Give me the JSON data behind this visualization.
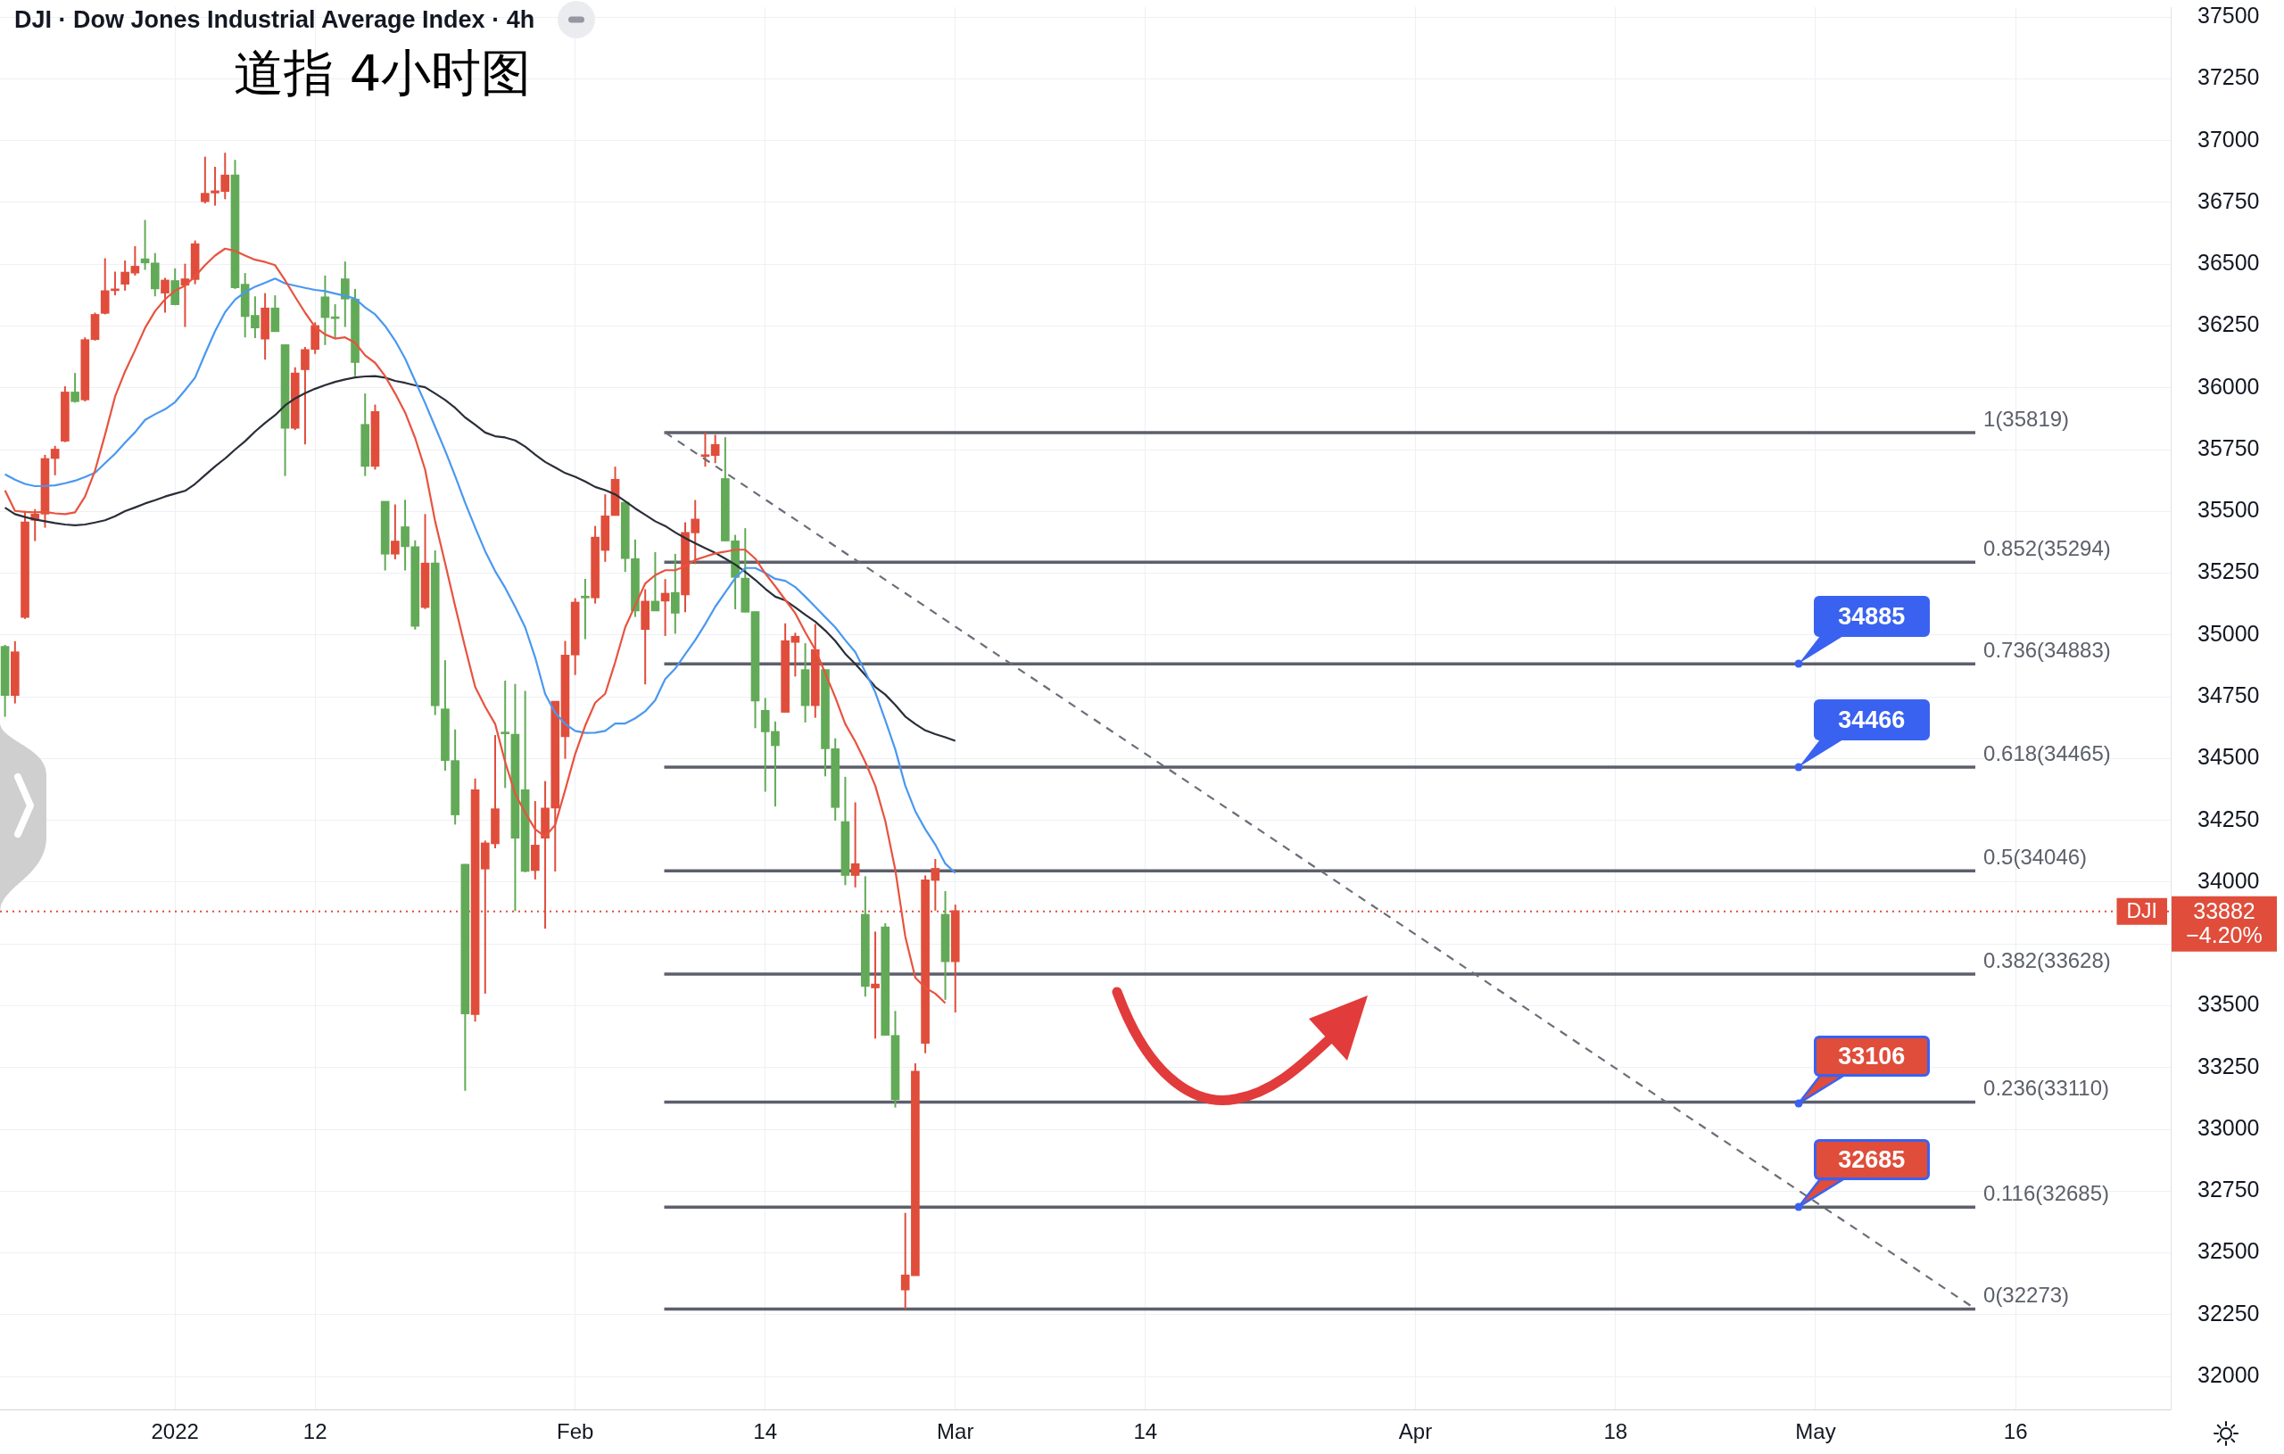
{
  "chart_data": {
    "type": "candlestick",
    "title": "DJI · Dow Jones Industrial Average Index · 4h",
    "subtitle": "道指 4小时图",
    "categories": [
      null,
      null,
      null,
      null,
      null,
      null,
      null,
      null,
      null,
      null,
      null,
      null,
      null,
      null,
      null,
      null,
      null,
      "2022",
      null,
      null,
      null,
      null,
      null,
      null,
      null,
      null,
      null,
      null,
      null,
      null,
      null,
      "12",
      null,
      null,
      null,
      null,
      null,
      null,
      null,
      null,
      null,
      null,
      null,
      null,
      null,
      null,
      null,
      null,
      null,
      null,
      null,
      null,
      null,
      null,
      null,
      null,
      null,
      "Feb",
      null,
      null,
      null,
      null,
      null,
      null,
      null,
      null,
      null,
      null,
      null,
      null,
      null,
      null,
      null,
      null,
      null,
      null,
      "14",
      null,
      null,
      null,
      null,
      null,
      null,
      null,
      null,
      null,
      null,
      null,
      null,
      null,
      null,
      null,
      null,
      null,
      null,
      "Mar",
      null,
      null,
      null,
      null,
      null,
      null,
      null,
      null,
      null,
      null,
      null,
      null,
      null,
      null,
      null,
      null,
      null,
      null,
      "14",
      null,
      null,
      null,
      null,
      null,
      null,
      null,
      null,
      null,
      null,
      null,
      null,
      null,
      null,
      null,
      null,
      null,
      null,
      null,
      null,
      null,
      null,
      null,
      null,
      null,
      null,
      "Apr",
      null,
      null,
      null,
      null,
      null,
      null,
      null,
      null,
      null,
      null,
      null,
      null,
      null,
      null,
      null,
      null,
      null,
      null,
      null,
      "18",
      null,
      null,
      null,
      null,
      null,
      null,
      null,
      null,
      null,
      null,
      null,
      null,
      null,
      null,
      null,
      null,
      null,
      null,
      null,
      "May",
      null,
      null,
      null,
      null,
      null,
      null,
      null,
      null,
      null,
      null,
      null,
      null,
      null,
      null,
      null,
      null,
      null,
      null,
      null,
      "16",
      null,
      null,
      null,
      null,
      null,
      null,
      null,
      null,
      null,
      null,
      null,
      null,
      null,
      null,
      null
    ],
    "ohlc": [
      [
        34954,
        34960,
        34669,
        34755
      ],
      [
        34755,
        34975,
        34723,
        34932
      ],
      [
        35071,
        35502,
        35065,
        35457
      ],
      [
        35464,
        35509,
        35380,
        35489
      ],
      [
        35489,
        35729,
        35434,
        35714
      ],
      [
        35714,
        35765,
        35646,
        35752
      ],
      [
        35784,
        36006,
        35780,
        35983
      ],
      [
        35983,
        36060,
        35940,
        35944
      ],
      [
        35951,
        36204,
        35945,
        36195
      ],
      [
        36195,
        36304,
        36191,
        36297
      ],
      [
        36301,
        36524,
        36297,
        36393
      ],
      [
        36393,
        36470,
        36374,
        36398
      ],
      [
        36419,
        36515,
        36393,
        36468
      ],
      [
        36464,
        36573,
        36454,
        36492
      ],
      [
        36522,
        36679,
        36477,
        36505
      ],
      [
        36505,
        36545,
        36370,
        36400
      ],
      [
        36383,
        36445,
        36304,
        36436
      ],
      [
        36434,
        36483,
        36334,
        36336
      ],
      [
        36415,
        36502,
        36246,
        36441
      ],
      [
        36438,
        36596,
        36419,
        36583
      ],
      [
        36753,
        36935,
        36746,
        36787
      ],
      [
        36788,
        36894,
        36737,
        36797
      ],
      [
        36794,
        36951,
        36763,
        36861
      ],
      [
        36861,
        36922,
        36400,
        36404
      ],
      [
        36419,
        36464,
        36204,
        36288
      ],
      [
        36293,
        36370,
        36201,
        36242
      ],
      [
        36197,
        36383,
        36114,
        36323
      ],
      [
        36323,
        36374,
        36226,
        36227
      ],
      [
        36175,
        36175,
        35643,
        35836
      ],
      [
        35836,
        36083,
        35829,
        36060
      ],
      [
        36073,
        36165,
        35771,
        36155
      ],
      [
        36155,
        36265,
        36137,
        36252
      ],
      [
        36368,
        36454,
        36173,
        36284
      ],
      [
        36282,
        36338,
        36199,
        36280
      ],
      [
        36441,
        36511,
        36246,
        36359
      ],
      [
        36359,
        36400,
        36047,
        36102
      ],
      [
        35852,
        35977,
        35643,
        35682
      ],
      [
        35682,
        35932,
        35669,
        35904
      ],
      [
        35541,
        35541,
        35261,
        35327
      ],
      [
        35327,
        35528,
        35306,
        35380
      ],
      [
        35438,
        35547,
        35261,
        35357
      ],
      [
        35357,
        35383,
        35022,
        35035
      ],
      [
        35111,
        35489,
        35105,
        35291
      ],
      [
        35291,
        35342,
        34676,
        34714
      ],
      [
        34701,
        34898,
        34451,
        34492
      ],
      [
        34492,
        34618,
        34233,
        34272
      ],
      [
        34073,
        34073,
        33156,
        33467
      ],
      [
        33464,
        34419,
        33436,
        34374
      ],
      [
        34053,
        34168,
        33549,
        34159
      ],
      [
        34155,
        34595,
        34137,
        34297
      ],
      [
        34605,
        34815,
        34381,
        34600
      ],
      [
        34599,
        34802,
        33883,
        34178
      ],
      [
        34374,
        34774,
        34040,
        34043
      ],
      [
        34047,
        34328,
        34011,
        34150
      ],
      [
        34178,
        34409,
        33812,
        34300
      ],
      [
        34300,
        34732,
        34043,
        34732
      ],
      [
        34588,
        34976,
        34499,
        34919
      ],
      [
        34919,
        35149,
        34838,
        35133
      ],
      [
        35153,
        35227,
        34983,
        35150
      ],
      [
        35150,
        35441,
        35127,
        35396
      ],
      [
        35342,
        35569,
        35296,
        35482
      ],
      [
        35483,
        35681,
        35483,
        35630
      ],
      [
        35537,
        35537,
        35255,
        35309
      ],
      [
        35309,
        35386,
        35073,
        35097
      ],
      [
        35022,
        35185,
        34800,
        35137
      ],
      [
        35137,
        35335,
        35097,
        35097
      ],
      [
        35137,
        35226,
        34996,
        35169
      ],
      [
        35172,
        35328,
        35005,
        35088
      ],
      [
        35162,
        35456,
        35092,
        35415
      ],
      [
        35413,
        35546,
        35287,
        35469
      ],
      [
        35722,
        35819,
        35681,
        35724
      ],
      [
        35726,
        35810,
        35695,
        35771
      ],
      [
        35633,
        35800,
        35380,
        35380
      ],
      [
        35381,
        35405,
        35104,
        35233
      ],
      [
        35230,
        35432,
        35092,
        35092
      ],
      [
        35095,
        35095,
        34623,
        34733
      ],
      [
        34695,
        34745,
        34366,
        34608
      ],
      [
        34610,
        34650,
        34306,
        34552
      ],
      [
        34687,
        35047,
        34687,
        34977
      ],
      [
        34970,
        35009,
        34832,
        34995
      ],
      [
        34860,
        34967,
        34646,
        34714
      ],
      [
        34714,
        35044,
        34665,
        34941
      ],
      [
        34860,
        34860,
        34428,
        34540
      ],
      [
        34540,
        34582,
        34249,
        34302
      ],
      [
        34245,
        34426,
        33988,
        34027
      ],
      [
        34027,
        34323,
        33979,
        34075
      ],
      [
        33870,
        34024,
        33537,
        33578
      ],
      [
        33572,
        33800,
        33367,
        33588
      ],
      [
        33819,
        33834,
        33380,
        33380
      ],
      [
        33380,
        33479,
        33088,
        33120
      ],
      [
        32350,
        32662,
        32273,
        32411
      ],
      [
        32408,
        33267,
        32408,
        33235
      ],
      [
        33348,
        34027,
        33308,
        34009
      ],
      [
        34007,
        34094,
        33885,
        34056
      ],
      [
        33870,
        33964,
        33524,
        33678
      ],
      [
        33678,
        33909,
        33473,
        33885
      ],
      null,
      null,
      null,
      null,
      null,
      null,
      null,
      null,
      null,
      null,
      null,
      null,
      null,
      null,
      null,
      null,
      null,
      null,
      null,
      null,
      null,
      null,
      null,
      null,
      null,
      null,
      null,
      null,
      null,
      null,
      null,
      null,
      null,
      null,
      null,
      null,
      null,
      null,
      null,
      null,
      null,
      null,
      null,
      null,
      null,
      null,
      null,
      null,
      null,
      null,
      null,
      null,
      null,
      null,
      null,
      null,
      null,
      null,
      null,
      null,
      null,
      null,
      null,
      null,
      null,
      null,
      null,
      null,
      null,
      null,
      null,
      null,
      null,
      null,
      null,
      null,
      null,
      null,
      null,
      null,
      null,
      null,
      null,
      null,
      null,
      null,
      null,
      null,
      null,
      null,
      null,
      null,
      null,
      null,
      null,
      null,
      null,
      null,
      null,
      null,
      null,
      null,
      null,
      null,
      null,
      null,
      null,
      null,
      null,
      null,
      null,
      null,
      null,
      null,
      null,
      null,
      null,
      null,
      null,
      null,
      null
    ],
    "colors": [
      "#62aa57",
      "#e04d3b",
      "#e04d3b",
      "#e04d3b",
      "#e04d3b",
      "#e04d3b",
      "#e04d3b",
      "#62aa57",
      "#e04d3b",
      "#e04d3b",
      "#e04d3b",
      "#e04d3b",
      "#e04d3b",
      "#e04d3b",
      "#62aa57",
      "#62aa57",
      "#e04d3b",
      "#62aa57",
      "#e04d3b",
      "#e04d3b",
      "#e04d3b",
      "#e04d3b",
      "#e04d3b",
      "#62aa57",
      "#62aa57",
      "#62aa57",
      "#e04d3b",
      "#62aa57",
      "#62aa57",
      "#e04d3b",
      "#e04d3b",
      "#e04d3b",
      "#62aa57",
      "#62aa57",
      "#62aa57",
      "#62aa57",
      "#62aa57",
      "#e04d3b",
      "#62aa57",
      "#e04d3b",
      "#62aa57",
      "#62aa57",
      "#e04d3b",
      "#62aa57",
      "#62aa57",
      "#62aa57",
      "#62aa57",
      "#e04d3b",
      "#e04d3b",
      "#e04d3b",
      "#62aa57",
      "#62aa57",
      "#62aa57",
      "#e04d3b",
      "#e04d3b",
      "#e04d3b",
      "#e04d3b",
      "#e04d3b",
      "#62aa57",
      "#e04d3b",
      "#e04d3b",
      "#e04d3b",
      "#62aa57",
      "#62aa57",
      "#e04d3b",
      "#62aa57",
      "#e04d3b",
      "#62aa57",
      "#e04d3b",
      "#e04d3b",
      "#e04d3b",
      "#e04d3b",
      "#62aa57",
      "#62aa57",
      "#62aa57",
      "#62aa57",
      "#62aa57",
      "#62aa57",
      "#e04d3b",
      "#e04d3b",
      "#62aa57",
      "#e04d3b",
      "#62aa57",
      "#62aa57",
      "#62aa57",
      "#e04d3b",
      "#62aa57",
      "#e04d3b",
      "#62aa57",
      "#62aa57",
      "#e04d3b",
      "#e04d3b",
      "#e04d3b",
      "#e04d3b",
      "#62aa57",
      "#e04d3b",
      null,
      null,
      null,
      null,
      null,
      null,
      null,
      null,
      null,
      null,
      null,
      null,
      null,
      null,
      null,
      null,
      null,
      null,
      null,
      null,
      null,
      null,
      null,
      null,
      null,
      null,
      null,
      null,
      null,
      null,
      null,
      null,
      null,
      null,
      null,
      null,
      null,
      null,
      null,
      null,
      null,
      null,
      null,
      null,
      null,
      null,
      null,
      null,
      null,
      null,
      null,
      null,
      null,
      null,
      null,
      null,
      null,
      null,
      null,
      null,
      null,
      null,
      null,
      null,
      null,
      null,
      null,
      null,
      null,
      null,
      null,
      null,
      null,
      null,
      null,
      null,
      null,
      null,
      null,
      null,
      null,
      null,
      null,
      null,
      null,
      null,
      null,
      null,
      null,
      null,
      null,
      null,
      null,
      null,
      null,
      null,
      null,
      null,
      null,
      null,
      null,
      null,
      null,
      null,
      null,
      null,
      null,
      null,
      null,
      null,
      null,
      null,
      null,
      null,
      null,
      null,
      null,
      null,
      null,
      null,
      null
    ],
    "series": [
      {
        "type": "line",
        "color": "#e8533f",
        "values": [
          35585,
          35502,
          35498,
          35496,
          35498,
          35492,
          35489,
          35496,
          35560,
          35665,
          35810,
          35964,
          36066,
          36152,
          36242,
          36310,
          36358,
          36393,
          36413,
          36451,
          36496,
          36535,
          36563,
          36554,
          36535,
          36518,
          36509,
          36496,
          36435,
          36368,
          36304,
          36246,
          36216,
          36199,
          36204,
          36182,
          36131,
          36101,
          36047,
          35977,
          35900,
          35797,
          35669,
          35460,
          35290,
          35117,
          34950,
          34790,
          34710,
          34640,
          34486,
          34357,
          34281,
          34214,
          34184,
          34232,
          34373,
          34518,
          34633,
          34726,
          34762,
          34890,
          35031,
          35120,
          35208,
          35242,
          35262,
          35262,
          35278,
          35304,
          35317,
          35330,
          35337,
          35345,
          35345,
          35309,
          35249,
          35197,
          35142,
          35088,
          35011,
          34941,
          34845,
          34748,
          34640,
          34569,
          34486,
          34390,
          34248,
          34050,
          33780,
          33614,
          33573,
          33549,
          33511,
          null,
          null,
          null,
          null,
          null,
          null,
          null,
          null,
          null,
          null,
          null,
          null,
          null,
          null,
          null,
          null,
          null,
          null,
          null,
          null,
          null,
          null,
          null,
          null,
          null,
          null,
          null,
          null,
          null,
          null,
          null,
          null,
          null,
          null,
          null,
          null,
          null,
          null,
          null,
          null,
          null,
          null,
          null,
          null,
          null,
          null,
          null,
          null,
          null,
          null,
          null,
          null,
          null,
          null,
          null,
          null,
          null,
          null,
          null,
          null,
          null,
          null,
          null,
          null,
          null,
          null,
          null,
          null,
          null,
          null,
          null,
          null,
          null,
          null,
          null,
          null,
          null,
          null,
          null,
          null,
          null,
          null,
          null,
          null,
          null,
          null,
          null,
          null,
          null,
          null,
          null,
          null,
          null,
          null,
          null,
          null,
          null,
          null,
          null,
          null,
          null,
          null,
          null,
          null,
          null,
          null,
          null,
          null,
          null,
          null,
          null,
          null,
          null,
          null,
          null,
          null,
          null,
          null,
          null,
          null,
          null,
          null
        ]
      },
      {
        "type": "line",
        "color": "#4a98f0",
        "values": [
          35650,
          35628,
          35611,
          35602,
          35603,
          35605,
          35614,
          35624,
          35639,
          35656,
          35695,
          35733,
          35778,
          35820,
          35870,
          35893,
          35913,
          35942,
          35990,
          36041,
          36137,
          36229,
          36306,
          36357,
          36387,
          36409,
          36425,
          36442,
          36422,
          36413,
          36404,
          36396,
          36391,
          36381,
          36372,
          36361,
          36325,
          36297,
          36250,
          36191,
          36118,
          36028,
          35938,
          35842,
          35746,
          35643,
          35535,
          35435,
          35339,
          35258,
          35191,
          35114,
          35031,
          34909,
          34761,
          34685,
          34640,
          34612,
          34604,
          34605,
          34612,
          34642,
          34642,
          34663,
          34691,
          34736,
          34822,
          34864,
          34922,
          34979,
          35044,
          35114,
          35172,
          35230,
          35271,
          35271,
          35251,
          35227,
          35219,
          35194,
          35155,
          35114,
          35072,
          35031,
          34979,
          34931,
          34851,
          34768,
          34655,
          34537,
          34390,
          34287,
          34214,
          34152,
          34075,
          34037,
          null,
          null,
          null,
          null,
          null,
          null,
          null,
          null,
          null,
          null,
          null,
          null,
          null,
          null,
          null,
          null,
          null,
          null,
          null,
          null,
          null,
          null,
          null,
          null,
          null,
          null,
          null,
          null,
          null,
          null,
          null,
          null,
          null,
          null,
          null,
          null,
          null,
          null,
          null,
          null,
          null,
          null,
          null,
          null,
          null,
          null,
          null,
          null,
          null,
          null,
          null,
          null,
          null,
          null,
          null,
          null,
          null,
          null,
          null,
          null,
          null,
          null,
          null,
          null,
          null,
          null,
          null,
          null,
          null,
          null,
          null,
          null,
          null,
          null,
          null,
          null,
          null,
          null,
          null,
          null,
          null,
          null,
          null,
          null,
          null,
          null,
          null,
          null,
          null,
          null,
          null,
          null,
          null,
          null,
          null,
          null,
          null,
          null,
          null,
          null,
          null,
          null,
          null,
          null,
          null,
          null,
          null,
          null,
          null,
          null,
          null,
          null,
          null,
          null,
          null,
          null,
          null,
          null,
          null,
          null,
          null
        ]
      },
      {
        "type": "line",
        "color": "#2a2e39",
        "values": [
          35515,
          35489,
          35477,
          35467,
          35460,
          35453,
          35447,
          35444,
          35447,
          35455,
          35464,
          35480,
          35501,
          35516,
          35532,
          35545,
          35560,
          35572,
          35583,
          35611,
          35647,
          35682,
          35714,
          35750,
          35784,
          35823,
          35858,
          35889,
          35929,
          35957,
          35978,
          35996,
          36011,
          36024,
          36034,
          36042,
          36046,
          36047,
          36041,
          36028,
          36020,
          36010,
          36002,
          35977,
          35951,
          35919,
          35880,
          35851,
          35819,
          35804,
          35799,
          35787,
          35762,
          35730,
          35700,
          35678,
          35655,
          35640,
          35621,
          35599,
          35586,
          35569,
          35541,
          35512,
          35486,
          35460,
          35441,
          35415,
          35392,
          35371,
          35351,
          35332,
          35309,
          35285,
          35255,
          35223,
          35187,
          35155,
          35140,
          35112,
          35082,
          35054,
          35018,
          34976,
          34924,
          34883,
          34838,
          34790,
          34759,
          34717,
          34670,
          34640,
          34614,
          34599,
          34586,
          34572,
          null,
          null,
          null,
          null,
          null,
          null,
          null,
          null,
          null,
          null,
          null,
          null,
          null,
          null,
          null,
          null,
          null,
          null,
          null,
          null,
          null,
          null,
          null,
          null,
          null,
          null,
          null,
          null,
          null,
          null,
          null,
          null,
          null,
          null,
          null,
          null,
          null,
          null,
          null,
          null,
          null,
          null,
          null,
          null,
          null,
          null,
          null,
          null,
          null,
          null,
          null,
          null,
          null,
          null,
          null,
          null,
          null,
          null,
          null,
          null,
          null,
          null,
          null,
          null,
          null,
          null,
          null,
          null,
          null,
          null,
          null,
          null,
          null,
          null,
          null,
          null,
          null,
          null,
          null,
          null,
          null,
          null,
          null,
          null,
          null,
          null,
          null,
          null,
          null,
          null,
          null,
          null,
          null,
          null,
          null,
          null,
          null,
          null,
          null,
          null,
          null,
          null,
          null,
          null,
          null,
          null,
          null,
          null,
          null,
          null,
          null,
          null,
          null,
          null,
          null,
          null,
          null,
          null,
          null,
          null,
          null
        ]
      },
      {
        "type": "line",
        "color": "#6b6e78",
        "line_style": "dashed",
        "values": [
          null,
          null,
          null,
          null,
          null,
          null,
          null,
          null,
          null,
          null,
          null,
          null,
          null,
          null,
          null,
          null,
          null,
          null,
          null,
          null,
          null,
          null,
          null,
          null,
          null,
          null,
          null,
          null,
          null,
          null,
          null,
          null,
          null,
          null,
          null,
          null,
          null,
          null,
          null,
          null,
          null,
          null,
          null,
          null,
          null,
          null,
          null,
          null,
          null,
          null,
          null,
          null,
          null,
          null,
          null,
          null,
          null,
          null,
          null,
          null,
          null,
          null,
          null,
          null,
          null,
          null,
          35819,
          null,
          null,
          null,
          null,
          null,
          null,
          null,
          null,
          null,
          null,
          null,
          null,
          null,
          null,
          null,
          null,
          null,
          null,
          null,
          null,
          null,
          null,
          null,
          null,
          null,
          null,
          null,
          null,
          null,
          null,
          null,
          null,
          null,
          null,
          null,
          null,
          null,
          null,
          null,
          null,
          null,
          null,
          null,
          null,
          null,
          null,
          null,
          null,
          null,
          null,
          null,
          null,
          null,
          null,
          null,
          null,
          null,
          null,
          null,
          null,
          null,
          null,
          null,
          null,
          null,
          null,
          null,
          null,
          null,
          null,
          null,
          null,
          null,
          null,
          null,
          null,
          null,
          null,
          null,
          null,
          null,
          null,
          null,
          null,
          null,
          null,
          null,
          null,
          null,
          null,
          null,
          null,
          null,
          null,
          null,
          null,
          null,
          null,
          null,
          null,
          null,
          null,
          null,
          null,
          null,
          null,
          null,
          null,
          null,
          null,
          null,
          null,
          null,
          null,
          null,
          null,
          null,
          null,
          null,
          null,
          null,
          null,
          null,
          null,
          null,
          null,
          null,
          null,
          null,
          null,
          32273,
          null,
          null,
          null,
          null,
          null,
          null,
          null,
          null,
          null,
          null,
          null,
          null,
          null,
          null,
          null,
          null,
          null,
          null,
          null
        ]
      }
    ],
    "ylim": [
      31867,
      37540
    ],
    "yticks": [
      32000,
      32250,
      32500,
      32750,
      33000,
      33250,
      33500,
      {
        "value": 33750,
        "label": null
      },
      34000,
      34250,
      34500,
      34750,
      35000,
      35250,
      35500,
      35750,
      36000,
      36250,
      36500,
      36750,
      37000,
      37250,
      37500
    ],
    "grid": true,
    "ref_lines": [
      {
        "axis": "y",
        "value": 35819,
        "label": "1(35819)",
        "color": "#5d606b",
        "line_style": "solid"
      },
      {
        "axis": "y",
        "value": 35294,
        "label": "0.852(35294)",
        "color": "#5d606b",
        "line_style": "solid"
      },
      {
        "axis": "y",
        "value": 34883,
        "label": "0.736(34883)",
        "color": "#5d606b",
        "line_style": "solid"
      },
      {
        "axis": "y",
        "value": 34465,
        "label": "0.618(34465)",
        "color": "#5d606b",
        "line_style": "solid"
      },
      {
        "axis": "y",
        "value": 34046,
        "label": "0.5(34046)",
        "color": "#5d606b",
        "line_style": "solid"
      },
      {
        "axis": "y",
        "value": 33628,
        "label": "0.382(33628)",
        "color": "#5d606b",
        "line_style": "solid"
      },
      {
        "axis": "y",
        "value": 33110,
        "label": "0.236(33110)",
        "color": "#5d606b",
        "line_style": "solid"
      },
      {
        "axis": "y",
        "value": 32685,
        "label": "0.116(32685)",
        "color": "#5d606b",
        "line_style": "solid"
      },
      {
        "axis": "y",
        "value": 32273,
        "label": "0(32273)",
        "color": "#5d606b",
        "line_style": "solid"
      },
      {
        "axis": "y",
        "value": 33882,
        "label": "DJI",
        "color": "#e04d3b",
        "line_style": "dotted"
      }
    ],
    "annotations": [
      "33882",
      {
        "text": "34885",
        "y": 34885
      },
      {
        "text": "34466",
        "y": 34466
      },
      {
        "text": "33106",
        "y": 33106
      },
      {
        "text": "32685",
        "y": 32685
      },
      "−4.20%"
    ]
  }
}
